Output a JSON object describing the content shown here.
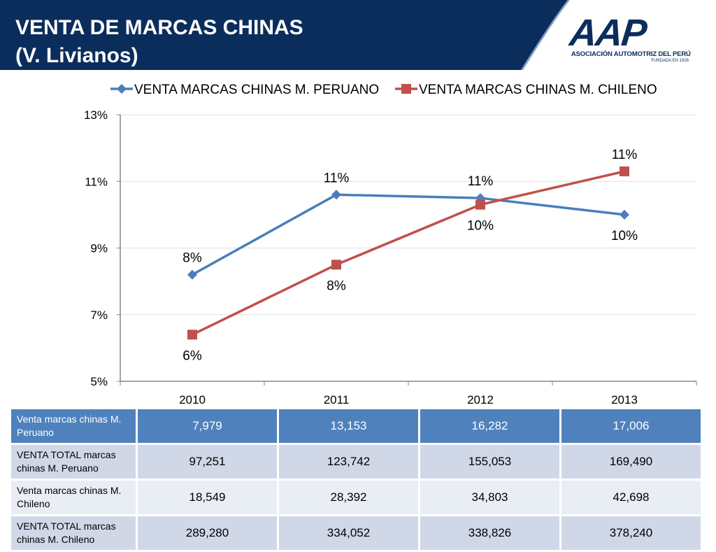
{
  "slide": {
    "title_line1": "VENTA DE MARCAS CHINAS",
    "title_line2": "(V. Livianos)",
    "banner_color": "#0b2d5c"
  },
  "logo": {
    "mark": "AAP",
    "organization": "ASOCIACIÓN AUTOMOTRIZ DEL PERÚ",
    "founded": "FUNDADA EN 1926"
  },
  "chart_data": {
    "type": "line",
    "title": "",
    "xlabel": "",
    "ylabel": "",
    "categories": [
      "2010",
      "2011",
      "2012",
      "2013"
    ],
    "ylim": [
      0.05,
      0.13
    ],
    "y_ticks": [
      {
        "value": 0.05,
        "label": "5%"
      },
      {
        "value": 0.07,
        "label": "7%"
      },
      {
        "value": 0.09,
        "label": "9%"
      },
      {
        "value": 0.11,
        "label": "11%"
      },
      {
        "value": 0.13,
        "label": "13%"
      }
    ],
    "grid": true,
    "legend_position": "top",
    "series": [
      {
        "name": "VENTA MARCAS CHINAS M. PERUANO",
        "color": "#4a7ebb",
        "marker": "diamond",
        "values": [
          0.082,
          0.106,
          0.105,
          0.1
        ],
        "labels": [
          "8%",
          "11%",
          "11%",
          "10%"
        ],
        "label_positions": [
          "above",
          "above",
          "above",
          "below"
        ]
      },
      {
        "name": "VENTA MARCAS CHINAS M. CHILENO",
        "color": "#c0504d",
        "marker": "square",
        "values": [
          0.064,
          0.085,
          0.103,
          0.113
        ],
        "labels": [
          "6%",
          "8%",
          "10%",
          "11%"
        ],
        "label_positions": [
          "below",
          "below",
          "below",
          "above"
        ]
      }
    ]
  },
  "table": {
    "rows": [
      {
        "label": "Venta marcas chinas M. Peruano",
        "values": [
          "7,979",
          "13,153",
          "16,282",
          "17,006"
        ]
      },
      {
        "label": "VENTA TOTAL marcas chinas M. Peruano",
        "values": [
          "97,251",
          "123,742",
          "155,053",
          "169,490"
        ]
      },
      {
        "label": "Venta marcas chinas M. Chileno",
        "values": [
          "18,549",
          "28,392",
          "34,803",
          "42,698"
        ]
      },
      {
        "label": "VENTA TOTAL marcas chinas M. Chileno",
        "values": [
          "289,280",
          "334,052",
          "338,826",
          "378,240"
        ]
      }
    ]
  }
}
